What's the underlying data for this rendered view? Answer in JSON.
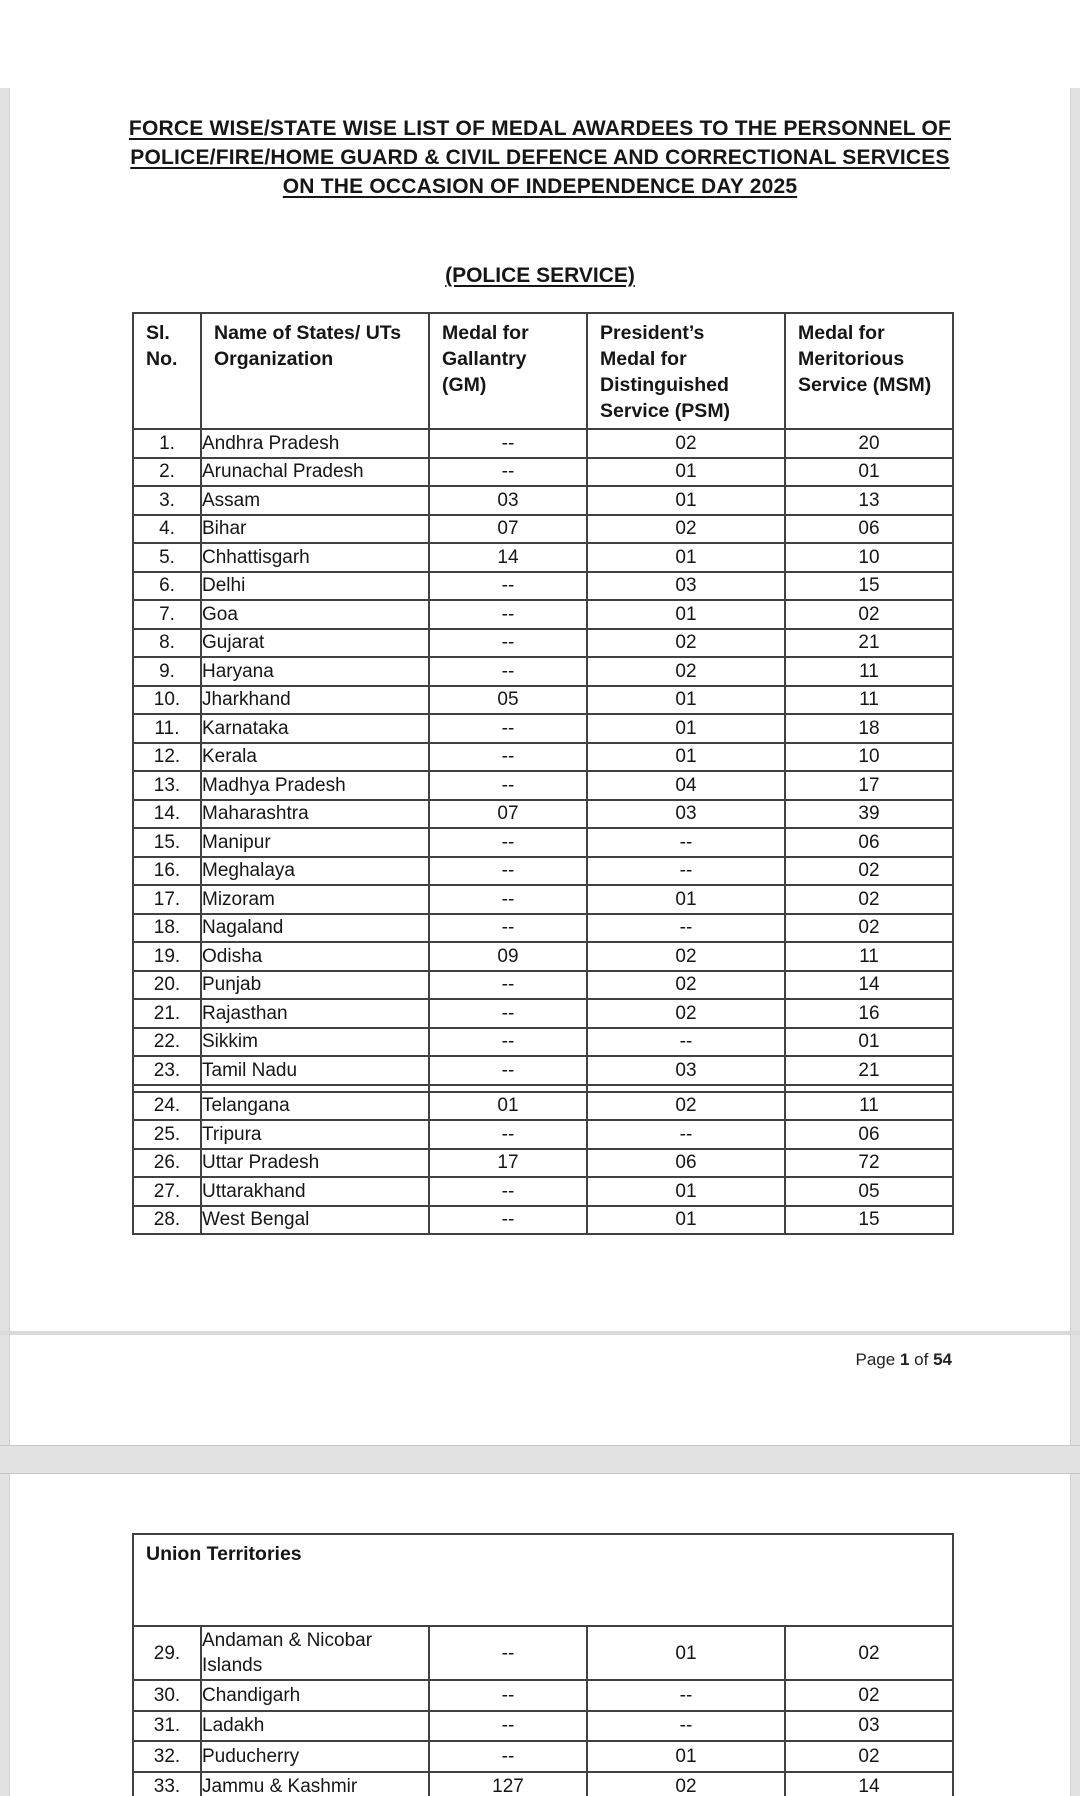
{
  "colors": {
    "viewer_background": "#e2e2e2",
    "page_background": "#ffffff",
    "table_border": "#414141",
    "text": "#161616"
  },
  "document": {
    "title_lines": [
      "FORCE WISE/STATE WISE LIST OF MEDAL AWARDEES TO THE PERSONNEL OF",
      "POLICE/FIRE/HOME GUARD & CIVIL DEFENCE AND CORRECTIONAL SERVICES",
      "ON THE OCCASION OF INDEPENDENCE DAY 2025"
    ],
    "section_heading": "(POLICE SERVICE)",
    "table_headers": [
      "Sl.\nNo.",
      "Name of States/ UTs\nOrganization",
      "Medal for\nGallantry\n(GM)",
      "President’s\nMedal for\nDistinguished\nService (PSM)",
      "Medal for\nMeritorious\nService (MSM)"
    ],
    "states_rows": [
      [
        "1.",
        "Andhra Pradesh",
        "--",
        "02",
        "20"
      ],
      [
        "2.",
        "Arunachal Pradesh",
        "--",
        "01",
        "01"
      ],
      [
        "3.",
        "Assam",
        "03",
        "01",
        "13"
      ],
      [
        "4.",
        "Bihar",
        "07",
        "02",
        "06"
      ],
      [
        "5.",
        "Chhattisgarh",
        "14",
        "01",
        "10"
      ],
      [
        "6.",
        "Delhi",
        "--",
        "03",
        "15"
      ],
      [
        "7.",
        "Goa",
        "--",
        "01",
        "02"
      ],
      [
        "8.",
        "Gujarat",
        "--",
        "02",
        "21"
      ],
      [
        "9.",
        "Haryana",
        "--",
        "02",
        "11"
      ],
      [
        "10.",
        "Jharkhand",
        "05",
        "01",
        "11"
      ],
      [
        "11.",
        "Karnataka",
        "--",
        "01",
        "18"
      ],
      [
        "12.",
        "Kerala",
        "--",
        "01",
        "10"
      ],
      [
        "13.",
        "Madhya Pradesh",
        "--",
        "04",
        "17"
      ],
      [
        "14.",
        "Maharashtra",
        "07",
        "03",
        "39"
      ],
      [
        "15.",
        "Manipur",
        "--",
        "--",
        "06"
      ],
      [
        "16.",
        "Meghalaya",
        "--",
        "--",
        "02"
      ],
      [
        "17.",
        "Mizoram",
        "--",
        "01",
        "02"
      ],
      [
        "18.",
        "Nagaland",
        "--",
        "--",
        "02"
      ],
      [
        "19.",
        "Odisha",
        "09",
        "02",
        "11"
      ],
      [
        "20.",
        "Punjab",
        "--",
        "02",
        "14"
      ],
      [
        "21.",
        "Rajasthan",
        "--",
        "02",
        "16"
      ],
      [
        "22.",
        "Sikkim",
        "--",
        "--",
        "01"
      ],
      [
        "23.",
        "Tamil Nadu",
        "--",
        "03",
        "21"
      ],
      [
        "24.",
        "Telangana",
        "01",
        "02",
        "11"
      ],
      [
        "25.",
        "Tripura",
        "--",
        "--",
        "06"
      ],
      [
        "26.",
        "Uttar Pradesh",
        "17",
        "06",
        "72"
      ],
      [
        "27.",
        "Uttarakhand",
        "--",
        "01",
        "05"
      ],
      [
        "28.",
        "West Bengal",
        "--",
        "01",
        "15"
      ]
    ],
    "footer": {
      "page_word": "Page",
      "page_number": "1",
      "of_word": "of",
      "total_pages": "54"
    },
    "union_territories": {
      "section_title": "Union Territories",
      "rows": [
        [
          "29.",
          "Andaman & Nicobar Islands",
          "--",
          "01",
          "02"
        ],
        [
          "30.",
          "Chandigarh",
          "--",
          "--",
          "02"
        ],
        [
          "31.",
          "Ladakh",
          "--",
          "--",
          "03"
        ],
        [
          "32.",
          "Puducherry",
          "--",
          "01",
          "02"
        ],
        [
          "33.",
          "Jammu & Kashmir",
          "127",
          "02",
          "14"
        ]
      ]
    }
  }
}
